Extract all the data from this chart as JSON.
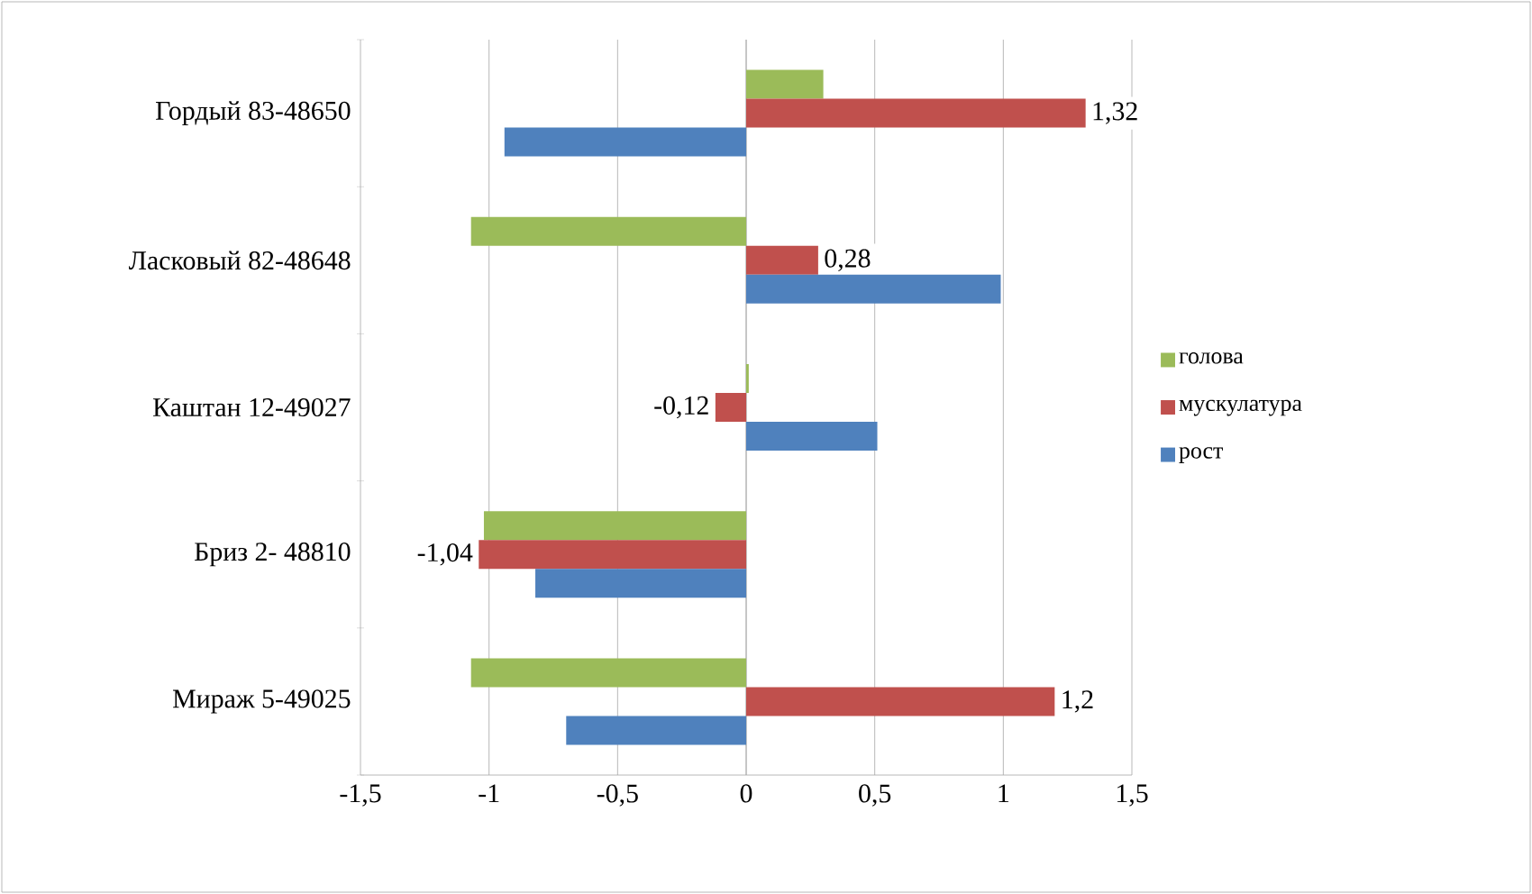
{
  "chart_data": {
    "type": "bar",
    "orientation": "horizontal",
    "categories": [
      "Гордый 83-48650",
      "Ласковый 82-48648",
      "Каштан 12-49027",
      "Бриз 2- 48810",
      "Мираж 5-49025"
    ],
    "series": [
      {
        "name": "голова",
        "color": "#9bbb59",
        "values": [
          0.3,
          -1.07,
          0.01,
          -1.02,
          -1.07
        ]
      },
      {
        "name": "мускулатура",
        "color": "#c0504d",
        "values": [
          1.32,
          0.28,
          -0.12,
          -1.04,
          1.2
        ],
        "value_labels": [
          "1,32",
          "0,28",
          "-0,12",
          "-1,04",
          "1,2"
        ]
      },
      {
        "name": "рост",
        "color": "#4f81bd",
        "values": [
          -0.94,
          0.99,
          0.51,
          -0.82,
          -0.7
        ]
      }
    ],
    "xlim": [
      -1.5,
      1.5
    ],
    "xticks": [
      {
        "value": -1.5,
        "label": "-1,5"
      },
      {
        "value": -1,
        "label": "-1"
      },
      {
        "value": -0.5,
        "label": "-0,5"
      },
      {
        "value": 0,
        "label": "0"
      },
      {
        "value": 0.5,
        "label": "0,5"
      },
      {
        "value": 1,
        "label": "1"
      },
      {
        "value": 1.5,
        "label": "1,5"
      }
    ],
    "grid": "x",
    "legend": "right"
  }
}
